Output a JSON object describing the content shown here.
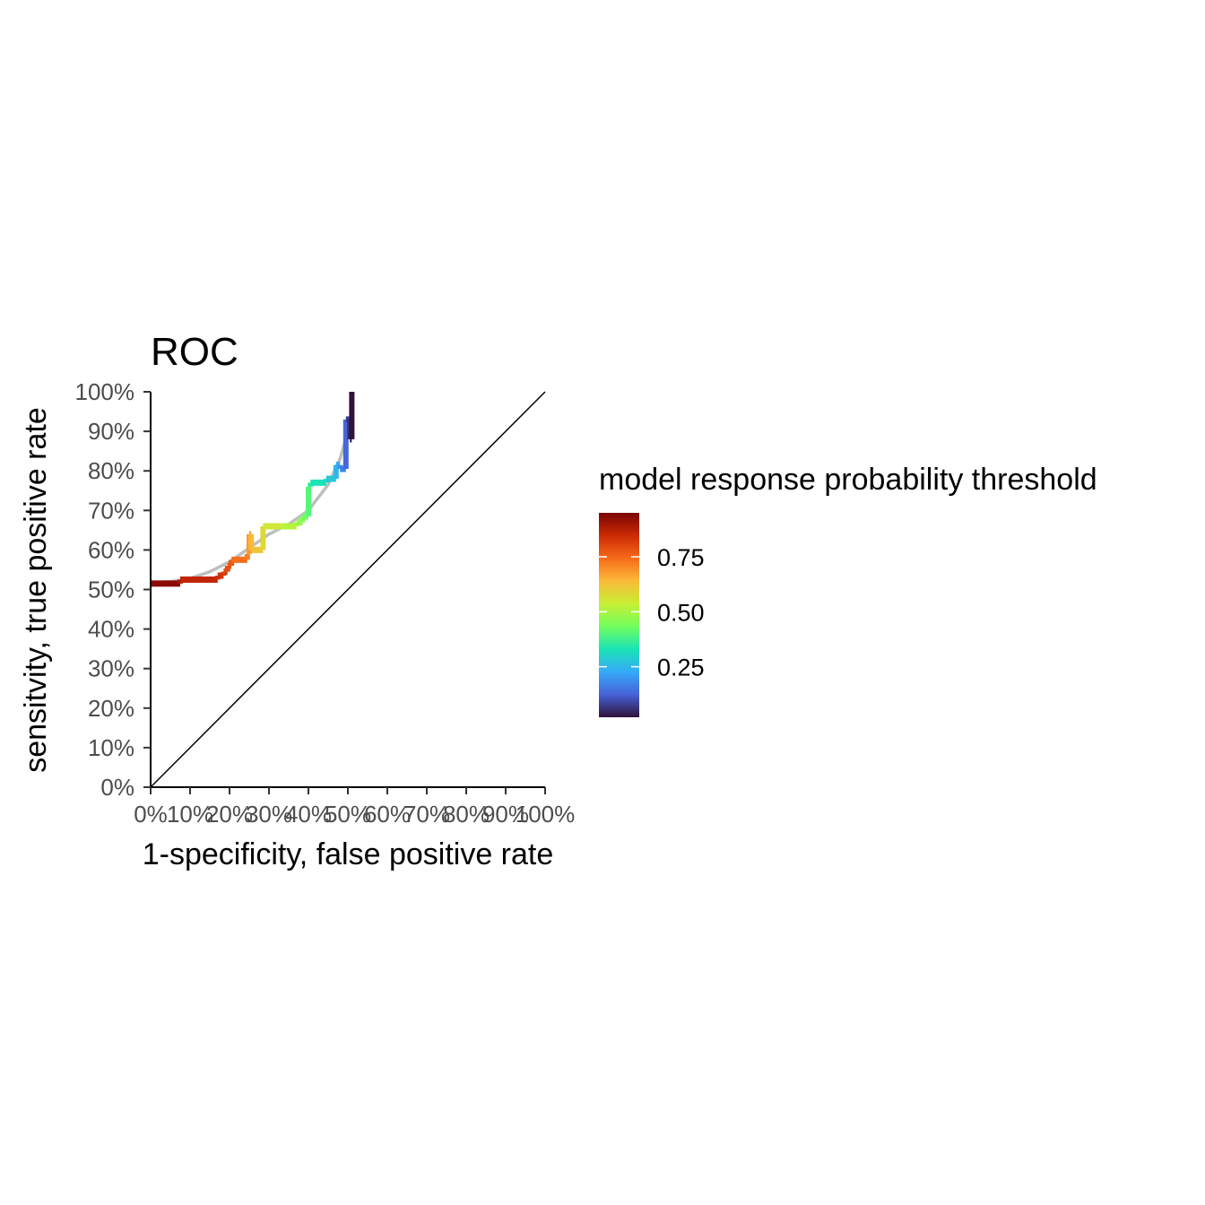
{
  "chart_data": {
    "type": "line",
    "title": "ROC",
    "xlabel": "1-specificity, false positive rate",
    "ylabel": "sensitvity, true positive rate",
    "xlim": [
      0,
      1
    ],
    "ylim": [
      0,
      1
    ],
    "x_ticks": [
      "0%",
      "10%",
      "20%",
      "30%",
      "40%",
      "50%",
      "60%",
      "70%",
      "80%",
      "90%",
      "100%"
    ],
    "y_ticks": [
      "0%",
      "10%",
      "20%",
      "30%",
      "40%",
      "50%",
      "60%",
      "70%",
      "80%",
      "90%",
      "100%"
    ],
    "grid": false,
    "legend_position": "right",
    "diagonal_reference": true,
    "colorbar": {
      "title": "model response probability threshold",
      "range": [
        0.02,
        0.95
      ],
      "ticks": [
        0.25,
        0.5,
        0.75
      ],
      "tick_labels": [
        "0.25",
        "0.50",
        "0.75"
      ],
      "colors": [
        "#30123b",
        "#4662d7",
        "#36aaf9",
        "#1ae4b6",
        "#72fe5e",
        "#c7ef34",
        "#faba39",
        "#f66b19",
        "#cb2a04",
        "#7a0403"
      ]
    },
    "smoothed_curve": {
      "color": "#bebebe",
      "x": [
        0.0,
        0.05,
        0.1,
        0.15,
        0.2,
        0.25,
        0.3,
        0.35,
        0.4,
        0.45,
        0.48,
        0.5
      ],
      "y": [
        0.518,
        0.52,
        0.528,
        0.545,
        0.57,
        0.605,
        0.64,
        0.665,
        0.7,
        0.765,
        0.83,
        0.9
      ]
    },
    "roc_points": [
      {
        "fpr": 0.0,
        "tpr": 0.515,
        "threshold": 0.95
      },
      {
        "fpr": 0.075,
        "tpr": 0.515,
        "threshold": 0.93
      },
      {
        "fpr": 0.075,
        "tpr": 0.525,
        "threshold": 0.9
      },
      {
        "fpr": 0.17,
        "tpr": 0.525,
        "threshold": 0.86
      },
      {
        "fpr": 0.17,
        "tpr": 0.535,
        "threshold": 0.84
      },
      {
        "fpr": 0.185,
        "tpr": 0.535,
        "threshold": 0.83
      },
      {
        "fpr": 0.185,
        "tpr": 0.545,
        "threshold": 0.82
      },
      {
        "fpr": 0.195,
        "tpr": 0.545,
        "threshold": 0.81
      },
      {
        "fpr": 0.195,
        "tpr": 0.56,
        "threshold": 0.79
      },
      {
        "fpr": 0.205,
        "tpr": 0.56,
        "threshold": 0.78
      },
      {
        "fpr": 0.205,
        "tpr": 0.575,
        "threshold": 0.77
      },
      {
        "fpr": 0.245,
        "tpr": 0.575,
        "threshold": 0.74
      },
      {
        "fpr": 0.245,
        "tpr": 0.59,
        "threshold": 0.72
      },
      {
        "fpr": 0.25,
        "tpr": 0.59,
        "threshold": 0.7
      },
      {
        "fpr": 0.25,
        "tpr": 0.64,
        "threshold": 0.68
      },
      {
        "fpr": 0.255,
        "tpr": 0.64,
        "threshold": 0.66
      },
      {
        "fpr": 0.255,
        "tpr": 0.6,
        "threshold": 0.64
      },
      {
        "fpr": 0.285,
        "tpr": 0.6,
        "threshold": 0.62
      },
      {
        "fpr": 0.285,
        "tpr": 0.66,
        "threshold": 0.58
      },
      {
        "fpr": 0.33,
        "tpr": 0.66,
        "threshold": 0.55
      },
      {
        "fpr": 0.37,
        "tpr": 0.66,
        "threshold": 0.52
      },
      {
        "fpr": 0.37,
        "tpr": 0.67,
        "threshold": 0.5
      },
      {
        "fpr": 0.385,
        "tpr": 0.67,
        "threshold": 0.48
      },
      {
        "fpr": 0.385,
        "tpr": 0.685,
        "threshold": 0.45
      },
      {
        "fpr": 0.4,
        "tpr": 0.685,
        "threshold": 0.43
      },
      {
        "fpr": 0.4,
        "tpr": 0.76,
        "threshold": 0.4
      },
      {
        "fpr": 0.405,
        "tpr": 0.76,
        "threshold": 0.38
      },
      {
        "fpr": 0.405,
        "tpr": 0.77,
        "threshold": 0.36
      },
      {
        "fpr": 0.445,
        "tpr": 0.77,
        "threshold": 0.33
      },
      {
        "fpr": 0.445,
        "tpr": 0.78,
        "threshold": 0.31
      },
      {
        "fpr": 0.47,
        "tpr": 0.78,
        "threshold": 0.28
      },
      {
        "fpr": 0.47,
        "tpr": 0.815,
        "threshold": 0.25
      },
      {
        "fpr": 0.48,
        "tpr": 0.815,
        "threshold": 0.22
      },
      {
        "fpr": 0.48,
        "tpr": 0.805,
        "threshold": 0.2
      },
      {
        "fpr": 0.495,
        "tpr": 0.805,
        "threshold": 0.17
      },
      {
        "fpr": 0.495,
        "tpr": 0.93,
        "threshold": 0.13
      },
      {
        "fpr": 0.505,
        "tpr": 0.93,
        "threshold": 0.08
      },
      {
        "fpr": 0.505,
        "tpr": 0.88,
        "threshold": 0.06
      },
      {
        "fpr": 0.51,
        "tpr": 0.88,
        "threshold": 0.04
      },
      {
        "fpr": 0.51,
        "tpr": 1.0,
        "threshold": 0.02
      }
    ]
  }
}
